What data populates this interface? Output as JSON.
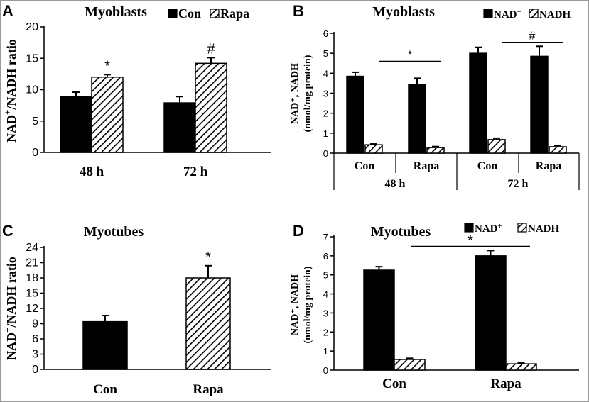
{
  "panels": {
    "a": {
      "letter": "A",
      "title": "Myoblasts",
      "ylabel_main": "NAD",
      "ylabel_sup": "+",
      "ylabel_rest": "/NADH ratio",
      "legend": [
        {
          "label": "Con",
          "fill": "solid"
        },
        {
          "label": "Rapa",
          "fill": "hatch"
        }
      ],
      "marks": [
        "*",
        "#"
      ]
    },
    "b": {
      "letter": "B",
      "title": "Myoblasts",
      "ylabel_line1": "NAD⁺, NADH",
      "ylabel_line2": "(nmol/mg protein)",
      "legend": [
        {
          "label": "NAD",
          "sup": "+",
          "fill": "solid"
        },
        {
          "label": "NADH",
          "fill": "hatch"
        }
      ],
      "marks": [
        "*",
        "#"
      ],
      "groups": [
        "48 h",
        "72 h"
      ]
    },
    "c": {
      "letter": "C",
      "title": "Myotubes",
      "ylabel_main": "NAD",
      "ylabel_sup": "+",
      "ylabel_rest": "/NADH ratio",
      "marks": [
        "*"
      ]
    },
    "d": {
      "letter": "D",
      "title": "Myotubes",
      "ylabel_line1": "NAD⁺, NADH",
      "ylabel_line2": "(nmol/mg protein)",
      "legend": [
        {
          "label": "NAD",
          "sup": "+",
          "fill": "solid"
        },
        {
          "label": "NADH",
          "fill": "hatch"
        }
      ],
      "marks": [
        "*"
      ]
    }
  },
  "colors": {
    "solid": "#000000",
    "hatch_stroke": "#000000",
    "background": "#ffffff"
  },
  "chart_data": [
    {
      "id": "A",
      "type": "bar",
      "title": "Myoblasts",
      "xlabel": "",
      "ylabel": "NAD+/NADH ratio",
      "categories": [
        "48 h",
        "72 h"
      ],
      "series": [
        {
          "name": "Con",
          "values": [
            8.9,
            7.9
          ],
          "errors": [
            0.7,
            1.0
          ]
        },
        {
          "name": "Rapa",
          "values": [
            12.0,
            14.2
          ],
          "errors": [
            0.4,
            0.9
          ]
        }
      ],
      "ylim": [
        0,
        20
      ],
      "yticks": [
        0,
        5,
        10,
        15,
        20
      ],
      "annotations": [
        {
          "text": "*",
          "category": "48 h",
          "series": "Rapa"
        },
        {
          "text": "#",
          "category": "72 h",
          "series": "Rapa"
        }
      ],
      "legend": "top",
      "grid": false
    },
    {
      "id": "B",
      "type": "bar",
      "title": "Myoblasts",
      "xlabel": "",
      "ylabel": "NAD+, NADH (nmol/mg protein)",
      "categories": [
        "Con",
        "Rapa",
        "Con",
        "Rapa"
      ],
      "groups": [
        {
          "label": "48 h",
          "categories": [
            "Con",
            "Rapa"
          ]
        },
        {
          "label": "72 h",
          "categories": [
            "Con",
            "Rapa"
          ]
        }
      ],
      "series": [
        {
          "name": "NAD+",
          "values": [
            3.85,
            3.45,
            5.0,
            4.85
          ],
          "errors": [
            0.2,
            0.3,
            0.3,
            0.5
          ]
        },
        {
          "name": "NADH",
          "values": [
            0.42,
            0.28,
            0.68,
            0.32
          ],
          "errors": [
            0.04,
            0.05,
            0.07,
            0.06
          ]
        }
      ],
      "ylim": [
        0,
        6
      ],
      "yticks": [
        0,
        1,
        2,
        3,
        4,
        5,
        6
      ],
      "annotations": [
        {
          "text": "*",
          "group": "48 h"
        },
        {
          "text": "#",
          "group": "72 h"
        }
      ],
      "legend": "top-right",
      "grid": false
    },
    {
      "id": "C",
      "type": "bar",
      "title": "Myotubes",
      "xlabel": "",
      "ylabel": "NAD+/NADH ratio",
      "categories": [
        "Con",
        "Rapa"
      ],
      "series": [
        {
          "values": [
            9.4,
            18.0
          ],
          "errors": [
            1.2,
            2.4
          ],
          "fills": [
            "solid",
            "hatch"
          ]
        }
      ],
      "ylim": [
        0,
        24
      ],
      "yticks": [
        0,
        3,
        6,
        9,
        12,
        15,
        18,
        21,
        24
      ],
      "annotations": [
        {
          "text": "*",
          "category": "Rapa"
        }
      ],
      "grid": false
    },
    {
      "id": "D",
      "type": "bar",
      "title": "Myotubes",
      "xlabel": "",
      "ylabel": "NAD+, NADH (nmol/mg protein)",
      "categories": [
        "Con",
        "Rapa"
      ],
      "series": [
        {
          "name": "NAD+",
          "values": [
            5.25,
            6.0
          ],
          "errors": [
            0.18,
            0.28
          ]
        },
        {
          "name": "NADH",
          "values": [
            0.56,
            0.33
          ],
          "errors": [
            0.06,
            0.05
          ]
        }
      ],
      "ylim": [
        0,
        7
      ],
      "yticks": [
        0,
        1,
        2,
        3,
        4,
        5,
        6,
        7
      ],
      "annotations": [
        {
          "text": "*",
          "span": "NAD+ Con to NAD+ Rapa"
        }
      ],
      "legend": "top-right",
      "grid": false
    }
  ]
}
